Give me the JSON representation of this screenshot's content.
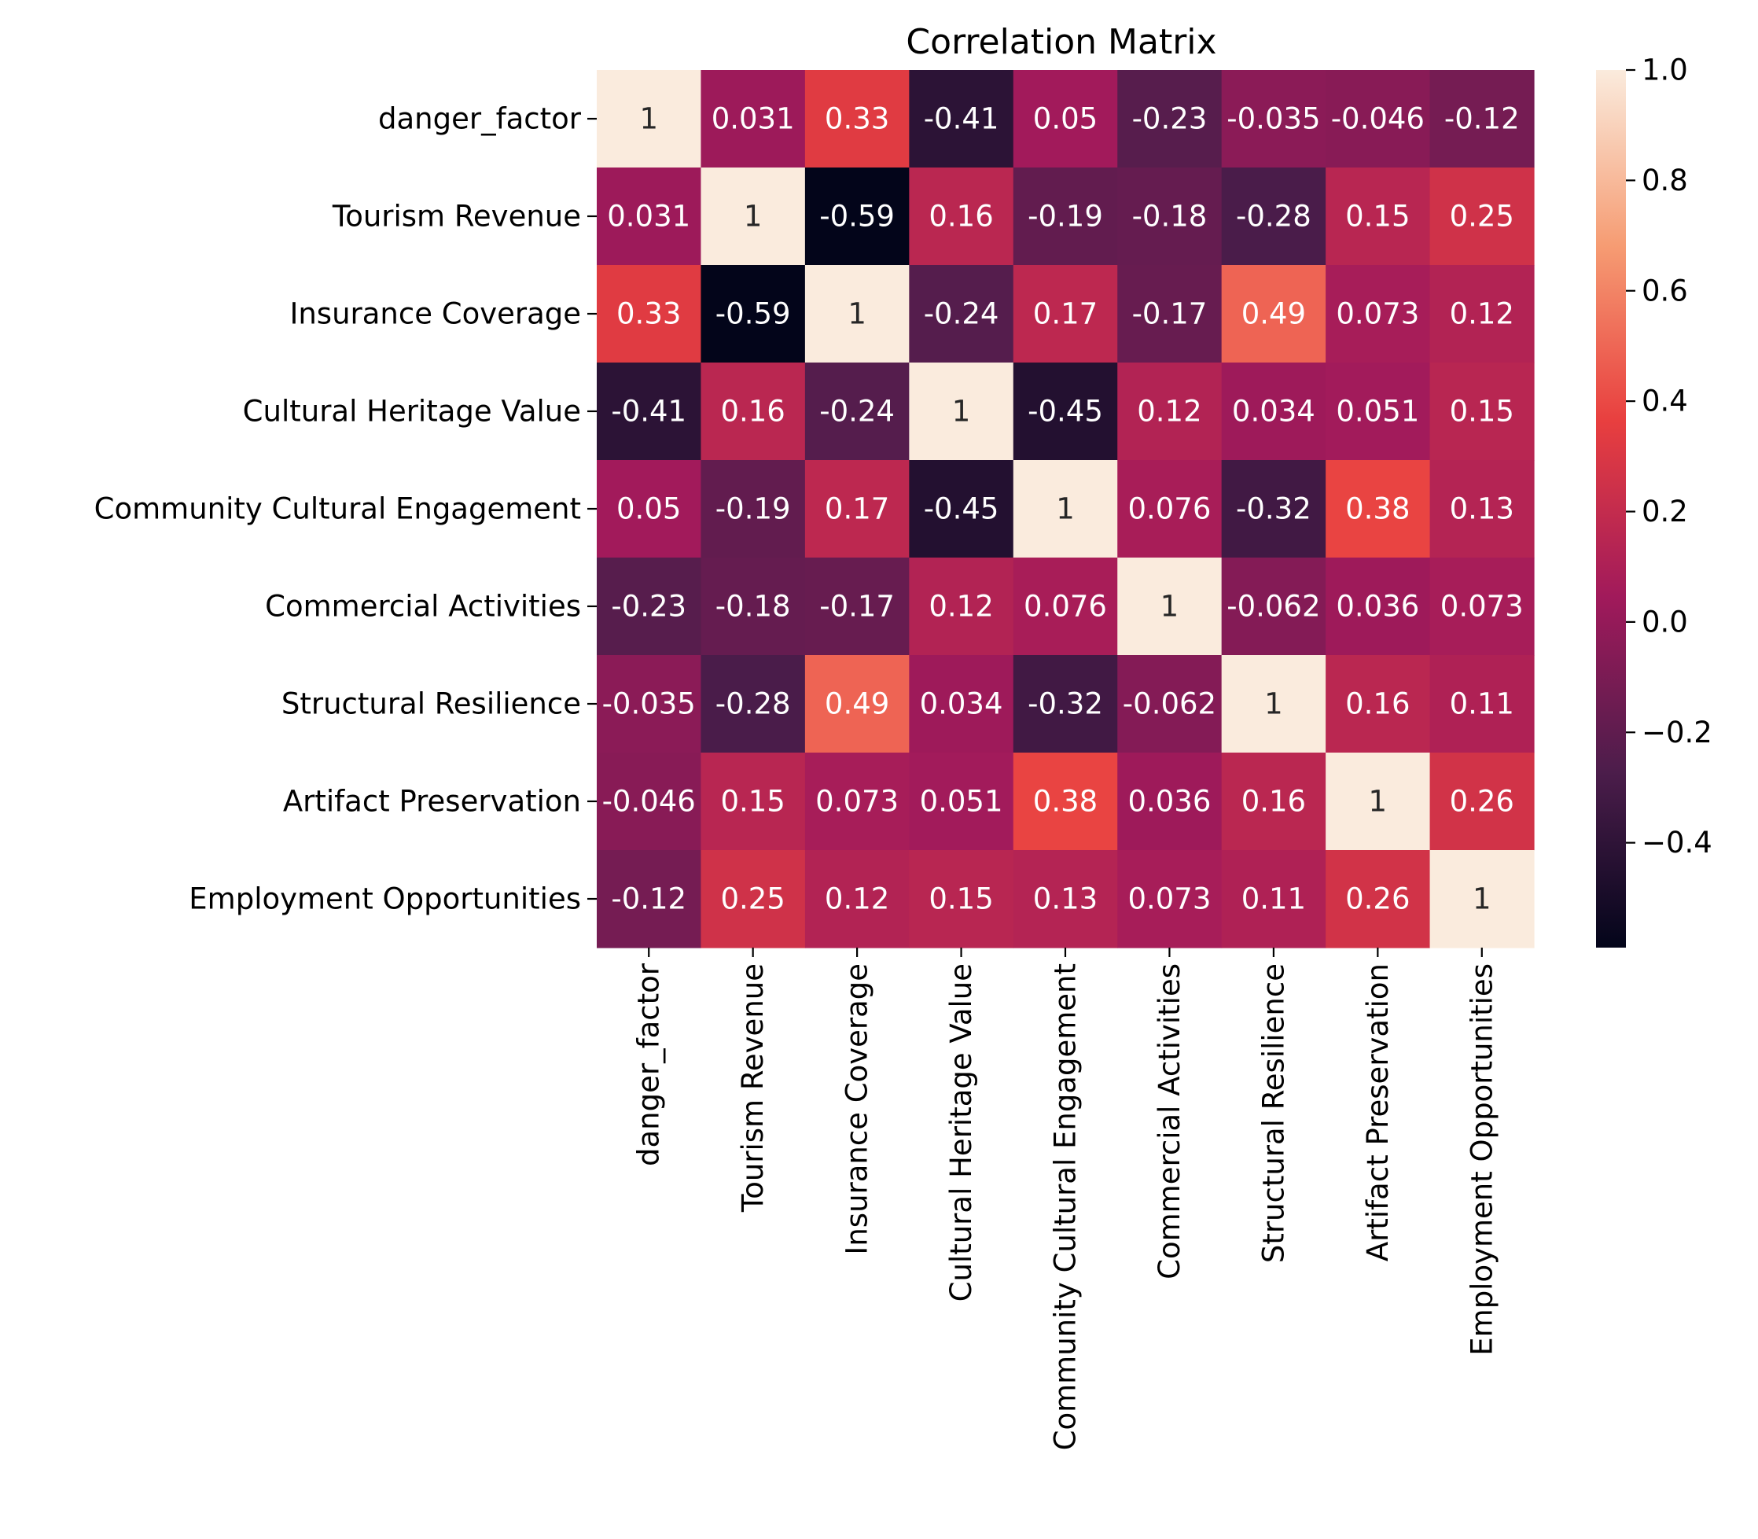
{
  "chart_data": {
    "type": "heatmap",
    "title": "Correlation Matrix",
    "xlabel": "",
    "ylabel": "",
    "labels": [
      "danger_factor",
      "Tourism Revenue",
      "Insurance Coverage",
      "Cultural Heritage Value",
      "Community Cultural Engagement",
      "Commercial Activities",
      "Structural Resilience",
      "Artifact Preservation",
      "Employment Opportunities"
    ],
    "values": [
      [
        1,
        0.031,
        0.33,
        -0.41,
        0.05,
        -0.23,
        -0.035,
        -0.046,
        -0.12
      ],
      [
        0.031,
        1,
        -0.59,
        0.16,
        -0.19,
        -0.18,
        -0.28,
        0.15,
        0.25
      ],
      [
        0.33,
        -0.59,
        1,
        -0.24,
        0.17,
        -0.17,
        0.49,
        0.073,
        0.12
      ],
      [
        -0.41,
        0.16,
        -0.24,
        1,
        -0.45,
        0.12,
        0.034,
        0.051,
        0.15
      ],
      [
        0.05,
        -0.19,
        0.17,
        -0.45,
        1,
        0.076,
        -0.32,
        0.38,
        0.13
      ],
      [
        -0.23,
        -0.18,
        -0.17,
        0.12,
        0.076,
        1,
        -0.062,
        0.036,
        0.073
      ],
      [
        -0.035,
        -0.28,
        0.49,
        0.034,
        -0.32,
        -0.062,
        1,
        0.16,
        0.11
      ],
      [
        -0.046,
        0.15,
        0.073,
        0.051,
        0.38,
        0.036,
        0.16,
        1,
        0.26
      ],
      [
        -0.12,
        0.25,
        0.12,
        0.15,
        0.13,
        0.073,
        0.11,
        0.26,
        1
      ]
    ],
    "annotations": [
      [
        "1",
        "0.031",
        "0.33",
        "-0.41",
        "0.05",
        "-0.23",
        "-0.035",
        "-0.046",
        "-0.12"
      ],
      [
        "0.031",
        "1",
        "-0.59",
        "0.16",
        "-0.19",
        "-0.18",
        "-0.28",
        "0.15",
        "0.25"
      ],
      [
        "0.33",
        "-0.59",
        "1",
        "-0.24",
        "0.17",
        "-0.17",
        "0.49",
        "0.073",
        "0.12"
      ],
      [
        "-0.41",
        "0.16",
        "-0.24",
        "1",
        "-0.45",
        "0.12",
        "0.034",
        "0.051",
        "0.15"
      ],
      [
        "0.05",
        "-0.19",
        "0.17",
        "-0.45",
        "1",
        "0.076",
        "-0.32",
        "0.38",
        "0.13"
      ],
      [
        "-0.23",
        "-0.18",
        "-0.17",
        "0.12",
        "0.076",
        "1",
        "-0.062",
        "0.036",
        "0.073"
      ],
      [
        "-0.035",
        "-0.28",
        "0.49",
        "0.034",
        "-0.32",
        "-0.062",
        "1",
        "0.16",
        "0.11"
      ],
      [
        "-0.046",
        "0.15",
        "0.073",
        "0.051",
        "0.38",
        "0.036",
        "0.16",
        "1",
        "0.26"
      ],
      [
        "-0.12",
        "0.25",
        "0.12",
        "0.15",
        "0.13",
        "0.073",
        "0.11",
        "0.26",
        "1"
      ]
    ],
    "colorbar": {
      "vmin": -0.59,
      "vmax": 1.0,
      "ticks": [
        1.0,
        0.8,
        0.6,
        0.4,
        0.2,
        0.0,
        -0.2,
        -0.4
      ],
      "tick_labels": [
        "1.0",
        "0.8",
        "0.6",
        "0.4",
        "0.2",
        "0.0",
        "−0.2",
        "−0.4"
      ],
      "colormap": "rocket",
      "colormap_stops": [
        "#03051a",
        "#4c1d4b",
        "#a11a5b",
        "#e83f3f",
        "#f69c73",
        "#faebdd"
      ]
    },
    "grid": false,
    "legend": "colorbar-right"
  }
}
